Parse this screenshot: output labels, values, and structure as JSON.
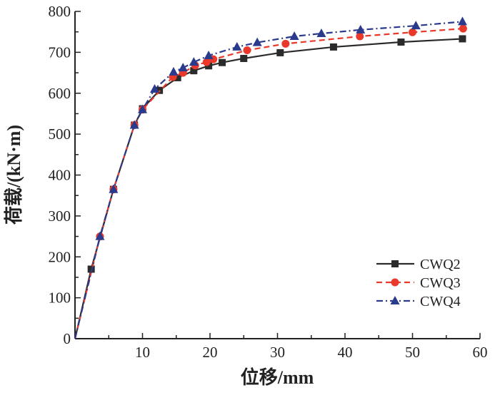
{
  "chart_data": {
    "type": "line",
    "title": "",
    "xlabel": "位移/mm",
    "ylabel": "荷载/(kN·m)",
    "xlim": [
      0,
      60
    ],
    "ylim": [
      0,
      800
    ],
    "xticks": [
      10,
      20,
      30,
      40,
      50,
      60
    ],
    "yticks": [
      0,
      100,
      200,
      300,
      400,
      500,
      600,
      700,
      800
    ],
    "legend_position": "right-middle",
    "series": [
      {
        "name": "CWQ2",
        "color": "#2b2b2b",
        "marker": "square",
        "dash": "solid",
        "x": [
          0,
          2.4,
          5.7,
          8.8,
          10,
          12.5,
          15.2,
          17.6,
          19.8,
          21.8,
          25,
          30.4,
          38.3,
          48.3,
          57.4
        ],
        "y": [
          0,
          170,
          365,
          522,
          562,
          607,
          638,
          655,
          667,
          675,
          685,
          699,
          713,
          725,
          733
        ]
      },
      {
        "name": "CWQ3",
        "color": "#e8392b",
        "marker": "circle",
        "dash": "dashed",
        "x": [
          0,
          3.7,
          5.7,
          8.8,
          10,
          14.5,
          16,
          17.8,
          19.5,
          20.5,
          25.5,
          31.2,
          42.2,
          50,
          57.5
        ],
        "y": [
          0,
          250,
          365,
          522,
          560,
          640,
          650,
          668,
          676,
          683,
          705,
          721,
          739,
          749,
          758
        ]
      },
      {
        "name": "CWQ4",
        "color": "#2a3a8c",
        "marker": "triangle",
        "dash": "dashdot",
        "x": [
          0,
          3.7,
          5.7,
          8.8,
          10,
          11.8,
          14.6,
          16,
          17.6,
          19.8,
          24,
          27,
          32.5,
          36.5,
          42.3,
          50.5,
          57.4
        ],
        "y": [
          0,
          250,
          365,
          522,
          560,
          610,
          652,
          662,
          676,
          692,
          713,
          724,
          739,
          746,
          755,
          765,
          775
        ]
      }
    ]
  }
}
